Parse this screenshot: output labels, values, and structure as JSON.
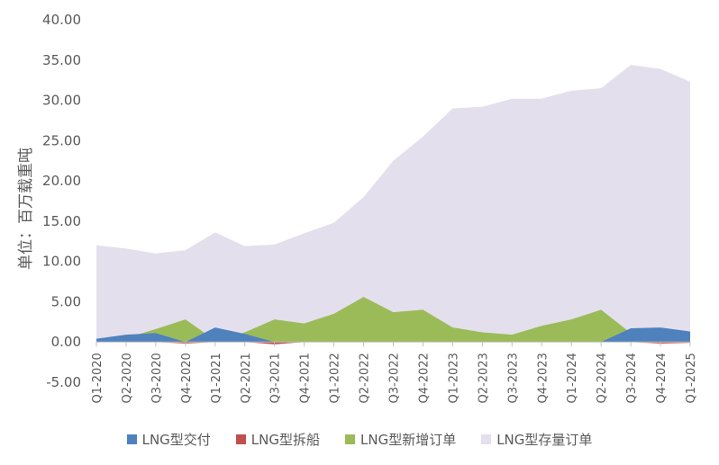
{
  "chart_data": {
    "type": "area",
    "title": "",
    "xlabel": "",
    "ylabel": "单位：百万载重吨",
    "ylim": [
      -5,
      40
    ],
    "y_ticks": [
      "-5.00",
      "0.00",
      "5.00",
      "10.00",
      "15.00",
      "20.00",
      "25.00",
      "30.00",
      "35.00",
      "40.00"
    ],
    "y_tick_values": [
      -5,
      0,
      5,
      10,
      15,
      20,
      25,
      30,
      35,
      40
    ],
    "grid": false,
    "legend_position": "bottom",
    "categories": [
      "Q1-2020",
      "Q2-2020",
      "Q3-2020",
      "Q4-2020",
      "Q1-2021",
      "Q2-2021",
      "Q3-2021",
      "Q4-2021",
      "Q1-2022",
      "Q2-2022",
      "Q3-2022",
      "Q4-2022",
      "Q1-2023",
      "Q2-2023",
      "Q3-2023",
      "Q4-2023",
      "Q1-2024",
      "Q2-2024",
      "Q3-2024",
      "Q4-2024",
      "Q1-2025"
    ],
    "series": [
      {
        "name": "LNG型存量订单",
        "color": "#e4dfec",
        "values": [
          12.0,
          11.6,
          11.0,
          11.4,
          13.6,
          11.9,
          12.1,
          13.5,
          14.8,
          18.0,
          22.5,
          25.5,
          29.0,
          29.2,
          30.2,
          30.2,
          31.2,
          31.5,
          34.4,
          33.9,
          32.3
        ]
      },
      {
        "name": "LNG型新增订单",
        "color": "#9bbb59",
        "values": [
          0.0,
          0.5,
          1.6,
          2.8,
          0.2,
          1.2,
          2.8,
          2.3,
          3.5,
          5.6,
          3.7,
          4.0,
          1.8,
          1.2,
          0.9,
          2.0,
          2.8,
          4.0,
          1.1,
          0.2,
          0.8
        ]
      },
      {
        "name": "LNG型交付",
        "color": "#4f81bd",
        "values": [
          0.4,
          0.9,
          1.1,
          0.0,
          1.8,
          1.0,
          0.0,
          0.0,
          0.0,
          0.0,
          0.0,
          0.0,
          0.0,
          0.0,
          0.0,
          0.0,
          0.0,
          0.0,
          1.7,
          1.8,
          1.3
        ]
      },
      {
        "name": "LNG型拆船",
        "color": "#c0504d",
        "values": [
          0.0,
          0.0,
          0.0,
          -0.2,
          0.0,
          0.0,
          -0.3,
          0.0,
          0.0,
          0.0,
          0.0,
          0.0,
          0.0,
          0.0,
          0.0,
          0.0,
          0.0,
          0.0,
          0.0,
          -0.2,
          -0.1
        ]
      }
    ],
    "legend": [
      "LNG型交付",
      "LNG型拆船",
      "LNG型新增订单",
      "LNG型存量订单"
    ]
  }
}
